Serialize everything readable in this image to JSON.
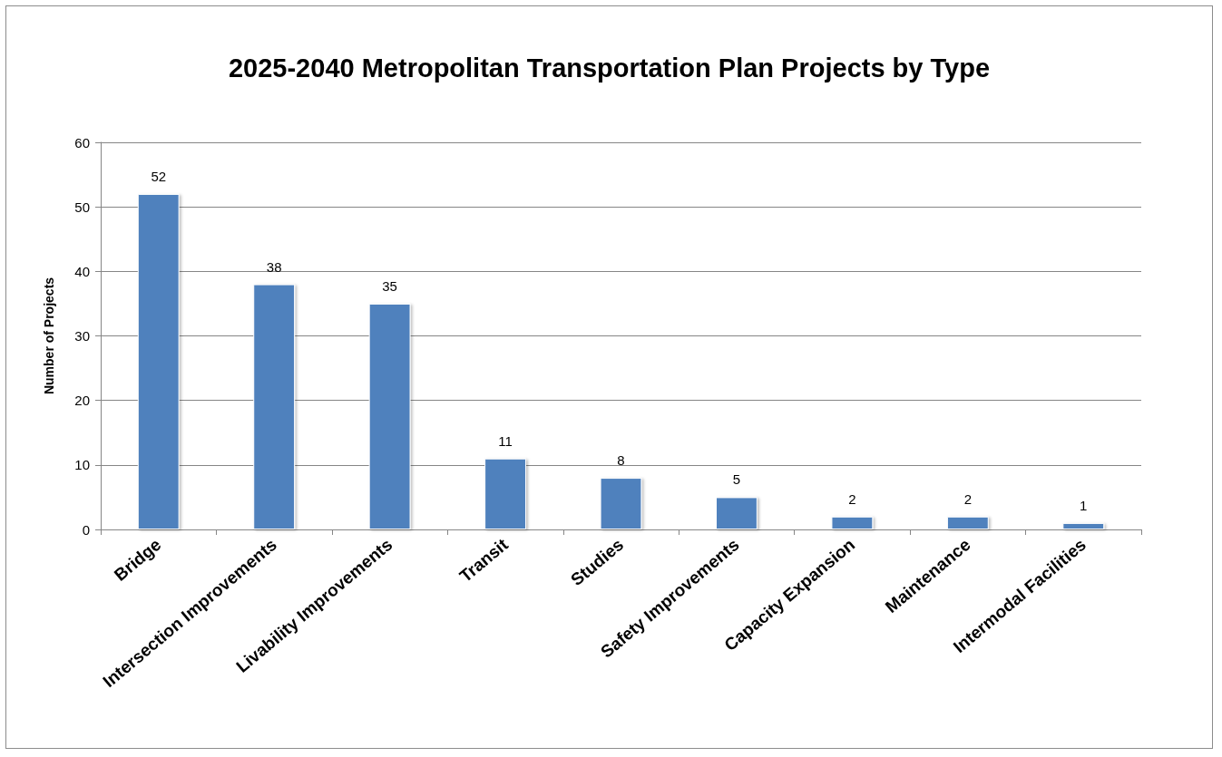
{
  "chart_data": {
    "type": "bar",
    "title": "2025-2040 Metropolitan Transportation Plan Projects by Type",
    "ylabel": "Number of Projects",
    "categories": [
      "Bridge",
      "Intersection Improvements",
      "Livability Improvements",
      "Transit",
      "Studies",
      "Safety Improvements",
      "Capacity Expansion",
      "Maintenance",
      "Intermodal Facilities"
    ],
    "values": [
      52,
      38,
      35,
      11,
      8,
      5,
      2,
      2,
      1
    ],
    "color": "#4f81bd",
    "ylim": [
      0,
      60
    ],
    "yticks": [
      0,
      10,
      20,
      30,
      40,
      50,
      60
    ],
    "grid": "y",
    "data_labels": true
  }
}
